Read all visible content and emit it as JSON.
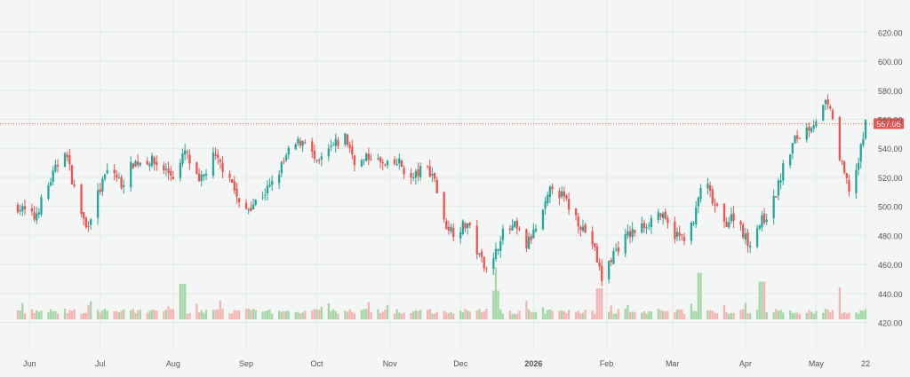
{
  "chart_data": {
    "type": "candlestick",
    "y_axis": {
      "range": [
        413,
        630
      ],
      "ticks": [
        "620.00",
        "600.00",
        "580.00",
        "560.00",
        "540.00",
        "520.00",
        "500.00",
        "480.00",
        "460.00",
        "440.00",
        "420.00"
      ],
      "tick_values": [
        620,
        600,
        580,
        560,
        540,
        520,
        500,
        480,
        460,
        440,
        420
      ],
      "position": "right"
    },
    "x_axis": {
      "labels": [
        "Jun",
        "Jul",
        "Aug",
        "Sep",
        "Oct",
        "Nov",
        "Dec",
        "2026",
        "Feb",
        "Mar",
        "Apr",
        "May",
        "22"
      ],
      "label_dates": [
        "2025-06-01",
        "2025-07-01",
        "2025-08-01",
        "2025-09-01",
        "2025-10-01",
        "2025-11-01",
        "2025-12-01",
        "2026-01-01",
        "2026-02-01",
        "2026-03-01",
        "2026-04-01",
        "2026-05-01",
        "2026-05-22"
      ]
    },
    "date_range": [
      "2025-05-27",
      "2026-05-22"
    ],
    "current_price": {
      "label": "557.05",
      "value": 557.05,
      "style": "dotted-horizontal-line"
    },
    "grid": true,
    "colors": {
      "up": "#26a69a",
      "down": "#ef5350",
      "volume_up": "#a5d6a7",
      "volume_down": "#f4b4b4",
      "price_line": "#ef5350",
      "background": "#f3f6f4",
      "grid": "#e4ebe6",
      "axis_text": "#555555"
    },
    "price_anchors": [
      [
        "2025-05-27",
        500
      ],
      [
        "2025-06-03",
        492
      ],
      [
        "2025-06-10",
        518
      ],
      [
        "2025-06-16",
        540
      ],
      [
        "2025-06-20",
        512
      ],
      [
        "2025-06-25",
        485
      ],
      [
        "2025-06-30",
        508
      ],
      [
        "2025-07-05",
        528
      ],
      [
        "2025-07-10",
        515
      ],
      [
        "2025-07-15",
        530
      ],
      [
        "2025-07-22",
        532
      ],
      [
        "2025-07-28",
        526
      ],
      [
        "2025-08-02",
        520
      ],
      [
        "2025-08-06",
        538
      ],
      [
        "2025-08-12",
        515
      ],
      [
        "2025-08-18",
        534
      ],
      [
        "2025-08-25",
        522
      ],
      [
        "2025-08-30",
        495
      ],
      [
        "2025-09-06",
        505
      ],
      [
        "2025-09-12",
        515
      ],
      [
        "2025-09-20",
        540
      ],
      [
        "2025-09-26",
        547
      ],
      [
        "2025-10-01",
        528
      ],
      [
        "2025-10-07",
        540
      ],
      [
        "2025-10-13",
        548
      ],
      [
        "2025-10-18",
        528
      ],
      [
        "2025-10-24",
        535
      ],
      [
        "2025-10-30",
        527
      ],
      [
        "2025-11-05",
        530
      ],
      [
        "2025-11-10",
        518
      ],
      [
        "2025-11-16",
        528
      ],
      [
        "2025-11-20",
        520
      ],
      [
        "2025-11-23",
        490
      ],
      [
        "2025-11-28",
        483
      ],
      [
        "2025-12-04",
        488
      ],
      [
        "2025-12-09",
        465
      ],
      [
        "2025-12-14",
        456
      ],
      [
        "2025-12-18",
        480
      ],
      [
        "2025-12-24",
        486
      ],
      [
        "2025-12-29",
        473
      ],
      [
        "2026-01-04",
        490
      ],
      [
        "2026-01-09",
        515
      ],
      [
        "2026-01-14",
        505
      ],
      [
        "2026-01-20",
        490
      ],
      [
        "2026-01-26",
        475
      ],
      [
        "2026-01-30",
        450
      ],
      [
        "2026-02-04",
        468
      ],
      [
        "2026-02-10",
        480
      ],
      [
        "2026-02-17",
        487
      ],
      [
        "2026-02-23",
        496
      ],
      [
        "2026-03-01",
        482
      ],
      [
        "2026-03-05",
        478
      ],
      [
        "2026-03-10",
        488
      ],
      [
        "2026-03-14",
        522
      ],
      [
        "2026-03-18",
        503
      ],
      [
        "2026-03-23",
        488
      ],
      [
        "2026-03-28",
        495
      ],
      [
        "2026-04-02",
        474
      ],
      [
        "2026-04-07",
        488
      ],
      [
        "2026-04-12",
        498
      ],
      [
        "2026-04-17",
        526
      ],
      [
        "2026-04-22",
        546
      ],
      [
        "2026-04-28",
        555
      ],
      [
        "2026-05-01",
        560
      ],
      [
        "2026-05-05",
        570
      ],
      [
        "2026-05-08",
        562
      ],
      [
        "2026-05-11",
        532
      ],
      [
        "2026-05-15",
        512
      ],
      [
        "2026-05-19",
        530
      ],
      [
        "2026-05-22",
        557
      ]
    ],
    "volume_spikes": [
      [
        "2025-08-05",
        3.2
      ],
      [
        "2025-12-16",
        2.6
      ],
      [
        "2026-01-29",
        2.8
      ],
      [
        "2026-03-13",
        4.2
      ],
      [
        "2026-04-08",
        3.4
      ],
      [
        "2026-05-10",
        2.9
      ]
    ]
  }
}
